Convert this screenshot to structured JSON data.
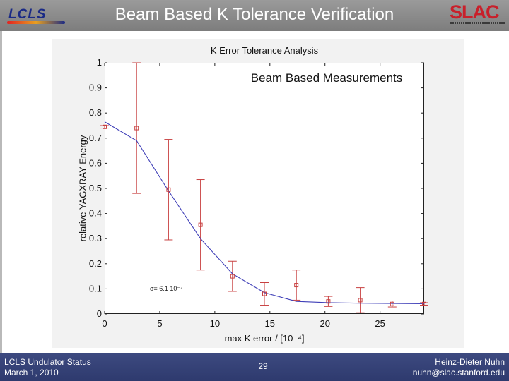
{
  "header": {
    "title": "Beam Based K Tolerance Verification"
  },
  "logos": {
    "left": "LCLS",
    "right": "SLAC"
  },
  "footer": {
    "left_line1": "LCLS Undulator Status",
    "left_line2": "March 1, 2010",
    "page_number": "29",
    "right_line1": "Heinz-Dieter Nuhn",
    "right_line2": "nuhn@slac.stanford.edu"
  },
  "chart_data": {
    "type": "scatter",
    "title": "K Error Tolerance Analysis",
    "subtitle": "Beam Based Measurements",
    "xlabel": "max K error / [10⁻⁴]",
    "ylabel": "relative YAGXRAY Energy",
    "xlim": [
      0,
      29
    ],
    "ylim": [
      0,
      1
    ],
    "x_ticks": [
      "0",
      "5",
      "10",
      "15",
      "20",
      "25"
    ],
    "y_ticks": [
      "0",
      "0.1",
      "0.2",
      "0.3",
      "0.4",
      "0.5",
      "0.6",
      "0.7",
      "0.8",
      "0.9",
      "1"
    ],
    "annotation": "σ= 6.1 10⁻⁴",
    "series": [
      {
        "kind": "measurement",
        "color": "#c84040",
        "x": [
          0,
          2.9,
          5.8,
          8.7,
          11.6,
          14.5,
          17.4,
          20.3,
          23.2,
          26.1,
          29.0
        ],
        "y": [
          0.745,
          0.74,
          0.495,
          0.355,
          0.15,
          0.08,
          0.115,
          0.05,
          0.055,
          0.04,
          0.04
        ],
        "yerr": [
          0.005,
          0.26,
          0.2,
          0.18,
          0.06,
          0.045,
          0.06,
          0.02,
          0.05,
          0.012,
          0.005
        ]
      },
      {
        "kind": "model",
        "color": "#4040b8",
        "x": [
          0,
          2.9,
          5.8,
          8.7,
          11.6,
          14.5,
          17.4,
          20.3,
          23.2,
          26.1,
          29.0
        ],
        "y": [
          0.765,
          0.69,
          0.49,
          0.3,
          0.16,
          0.085,
          0.05,
          0.045,
          0.043,
          0.042,
          0.041
        ]
      }
    ]
  }
}
